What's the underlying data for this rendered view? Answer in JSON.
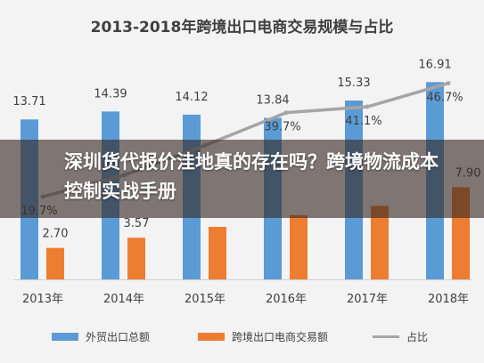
{
  "chart_data": {
    "type": "bar",
    "title": "2013-2018年跨境出口电商交易规模与占比",
    "categories": [
      "2013年",
      "2014年",
      "2015年",
      "2016年",
      "2017年",
      "2018年"
    ],
    "series": [
      {
        "name": "外贸出口总额",
        "kind": "bar",
        "color": "#5b9bd5",
        "values": [
          13.71,
          14.39,
          14.12,
          13.84,
          15.33,
          16.91
        ],
        "labels": [
          "13.71",
          "14.39",
          "14.12",
          "13.84",
          "15.33",
          "16.91"
        ]
      },
      {
        "name": "跨境出口电商交易额",
        "kind": "bar",
        "color": "#ed7d31",
        "values": [
          2.7,
          3.57,
          4.5,
          5.5,
          6.3,
          7.9
        ],
        "labels": [
          "2.70",
          "3.57",
          "",
          "",
          "",
          "7.90"
        ]
      },
      {
        "name": "占比",
        "kind": "line",
        "color": "#a5a5a5",
        "values": [
          19.7,
          24.8,
          31.9,
          39.7,
          41.1,
          46.7
        ],
        "labels": [
          "19.7%",
          "",
          "",
          "39.7%",
          "41.1%",
          "46.7%"
        ]
      }
    ],
    "ylim": [
      0,
      18
    ],
    "line_ylim": [
      0,
      50
    ],
    "grid": false,
    "legend_position": "bottom"
  },
  "overlay": {
    "text": "深圳货代报价洼地真的存在吗？跨境物流成本控制实战手册"
  }
}
